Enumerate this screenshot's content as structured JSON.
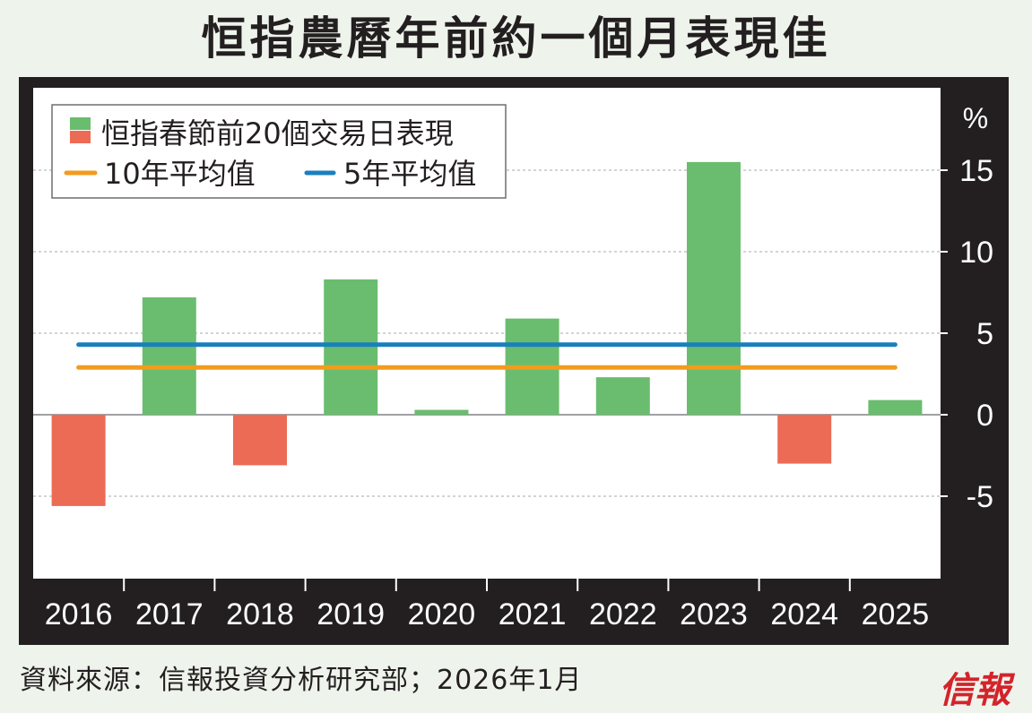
{
  "title": "恒指農曆年前約一個月表現佳",
  "source": "資料來源：信報投資分析研究部；2026年1月",
  "logo_text": "信報",
  "colors": {
    "positive": "#6abd6e",
    "negative": "#ec6b55",
    "avg10": "#f29b1d",
    "avg5": "#1a80bd",
    "frame": "#231f20",
    "plot_bg": "#ffffff"
  },
  "chart_data": {
    "type": "bar",
    "unit": "%",
    "categories": [
      "2016",
      "2017",
      "2018",
      "2019",
      "2020",
      "2021",
      "2022",
      "2023",
      "2024",
      "2025"
    ],
    "series": [
      {
        "name": "恒指春節前20個交易日表現",
        "values": [
          -5.6,
          7.2,
          -3.1,
          8.3,
          0.3,
          5.9,
          2.3,
          15.5,
          -3.0,
          0.9
        ]
      }
    ],
    "reference_lines": [
      {
        "name": "10年平均值",
        "value": 2.9,
        "color_key": "avg10"
      },
      {
        "name": "5年平均值",
        "value": 4.3,
        "color_key": "avg5"
      }
    ],
    "ylim": [
      -10,
      20
    ],
    "yticks": [
      "-5",
      "0",
      "5",
      "10",
      "15"
    ],
    "ytick_values": [
      -5,
      0,
      5,
      10,
      15
    ],
    "grid": "horizontal dashed",
    "legend_position": "top-left"
  }
}
